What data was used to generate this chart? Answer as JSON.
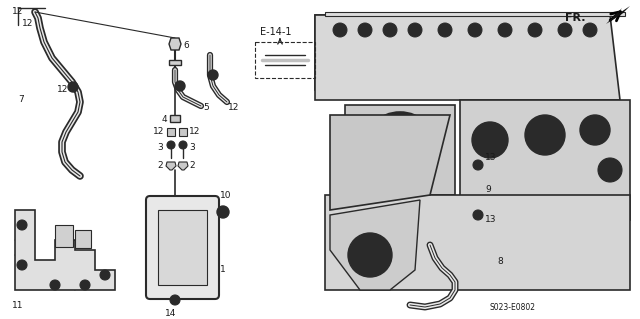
{
  "background_color": "#ffffff",
  "fig_width": 6.4,
  "fig_height": 3.19,
  "dpi": 100,
  "diagram_code": "S023-E0802",
  "fr_label": "FR.",
  "ref_label": "E-14-1",
  "line_color": "#2a2a2a",
  "text_color": "#1a1a1a",
  "font_size_labels": 6.5,
  "font_size_code": 5.5,
  "font_size_ref": 6.5
}
